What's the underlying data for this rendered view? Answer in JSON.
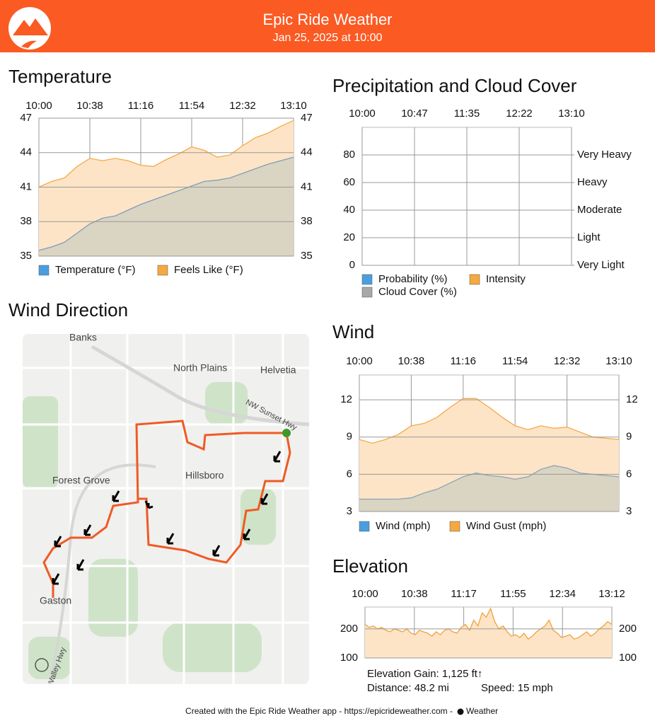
{
  "header": {
    "title": "Epic Ride Weather",
    "subtitle": "Jan 25, 2025 at 10:00"
  },
  "chart_data": [
    {
      "type": "area",
      "title": "Temperature",
      "xticks": [
        "10:00",
        "10:38",
        "11:16",
        "11:54",
        "12:32",
        "13:10"
      ],
      "ylim": [
        35,
        47
      ],
      "yticks": [
        35,
        38,
        41,
        44,
        47
      ],
      "grid": true,
      "series": [
        {
          "name": "Temperature (°F)",
          "color": "#4a9ee0",
          "line": "#7f9fb8",
          "fill": "#dad4c2",
          "values": [
            35.5,
            35.8,
            36.2,
            37,
            37.8,
            38.3,
            38.5,
            39,
            39.5,
            39.9,
            40.3,
            40.7,
            41.1,
            41.5,
            41.6,
            41.8,
            42.2,
            42.6,
            43,
            43.3,
            43.6
          ]
        },
        {
          "name": "Feels Like (°F)",
          "color": "#f5a940",
          "line": "#f5a948",
          "fill": "#fde4c6",
          "values": [
            41,
            41.5,
            41.8,
            42.8,
            43.5,
            43.3,
            43.5,
            43.3,
            42.9,
            42.8,
            43.4,
            43.9,
            44.5,
            44.2,
            43.6,
            43.8,
            44.6,
            45.3,
            45.7,
            46.3,
            46.8
          ]
        }
      ]
    },
    {
      "type": "area",
      "title": "Precipitation and Cloud Cover",
      "xticks": [
        "10:00",
        "10:47",
        "11:35",
        "12:22",
        "13:10"
      ],
      "ylim": [
        0,
        100
      ],
      "yticks": [
        0,
        20,
        40,
        60,
        80
      ],
      "grid": true,
      "y2lim": [
        0,
        100
      ],
      "y2ticks": [
        {
          "value": 0,
          "label": "Very Light"
        },
        {
          "value": 20,
          "label": "Light"
        },
        {
          "value": 40,
          "label": "Moderate"
        },
        {
          "value": 60,
          "label": "Heavy"
        },
        {
          "value": 80,
          "label": "Very Heavy"
        }
      ],
      "series": [
        {
          "name": "Probability (%)",
          "color": "#4a9ee0",
          "values": []
        },
        {
          "name": "Intensity",
          "color": "#f5a940",
          "values": []
        },
        {
          "name": "Cloud Cover (%)",
          "color": "#a8a8a8",
          "values": []
        }
      ]
    },
    {
      "type": "area",
      "title": "Wind",
      "xticks": [
        "10:00",
        "10:38",
        "11:16",
        "11:54",
        "12:32",
        "13:10"
      ],
      "ylim": [
        3,
        14
      ],
      "yticks": [
        3,
        6,
        9,
        12
      ],
      "grid": true,
      "series": [
        {
          "name": "Wind (mph)",
          "color": "#4a9ee0",
          "line": "#8ba3b6",
          "fill": "#dad4c2",
          "values": [
            4,
            4,
            4,
            4,
            4.1,
            4.5,
            4.8,
            5.3,
            5.8,
            6.1,
            5.9,
            5.8,
            5.6,
            5.8,
            6.4,
            6.7,
            6.5,
            6.1,
            6,
            5.9,
            5.8
          ]
        },
        {
          "name": "Wind Gust (mph)",
          "color": "#f5a940",
          "line": "#f5a948",
          "fill": "#fde4c6",
          "values": [
            8.8,
            8.5,
            8.8,
            9.2,
            9.9,
            10.1,
            10.6,
            11.4,
            12.1,
            12.1,
            11.4,
            10.6,
            9.9,
            9.6,
            9.9,
            9.7,
            9.8,
            9.4,
            9,
            8.9,
            8.8
          ]
        }
      ]
    },
    {
      "type": "area",
      "title": "Elevation",
      "xticks": [
        "10:00",
        "10:38",
        "11:17",
        "11:55",
        "12:34",
        "13:12"
      ],
      "ylim": [
        100,
        275
      ],
      "yticks": [
        100,
        200
      ],
      "grid": true,
      "series": [
        {
          "line": "#f0a23c",
          "fill": "#fde4c6",
          "values": [
            215,
            205,
            210,
            200,
            205,
            195,
            190,
            200,
            195,
            190,
            200,
            185,
            180,
            195,
            190,
            185,
            175,
            190,
            180,
            195,
            200,
            190,
            185,
            205,
            215,
            195,
            230,
            210,
            255,
            240,
            270,
            225,
            200,
            210,
            190,
            175,
            180,
            170,
            185,
            165,
            175,
            190,
            200,
            210,
            230,
            195,
            185,
            170,
            175,
            180,
            165,
            170,
            180,
            190,
            175,
            185,
            200,
            210,
            225,
            215
          ]
        }
      ]
    }
  ],
  "wind_direction": {
    "title": "Wind Direction",
    "places": [
      "Banks",
      "North Plains",
      "Helvetia",
      "NW Sunset Hwy",
      "Forest Grove",
      "Hillsboro",
      "Gaston",
      "Valley Hwy"
    ]
  },
  "elevation_stats": {
    "gain": "Elevation Gain: 1,125 ft↑",
    "distance": "Distance: 48.2 mi",
    "speed": "Speed: 15 mph"
  },
  "footer": {
    "text": "Created with the Epic Ride Weather app - https://epicrideweather.com -",
    "brand": "Weather"
  }
}
